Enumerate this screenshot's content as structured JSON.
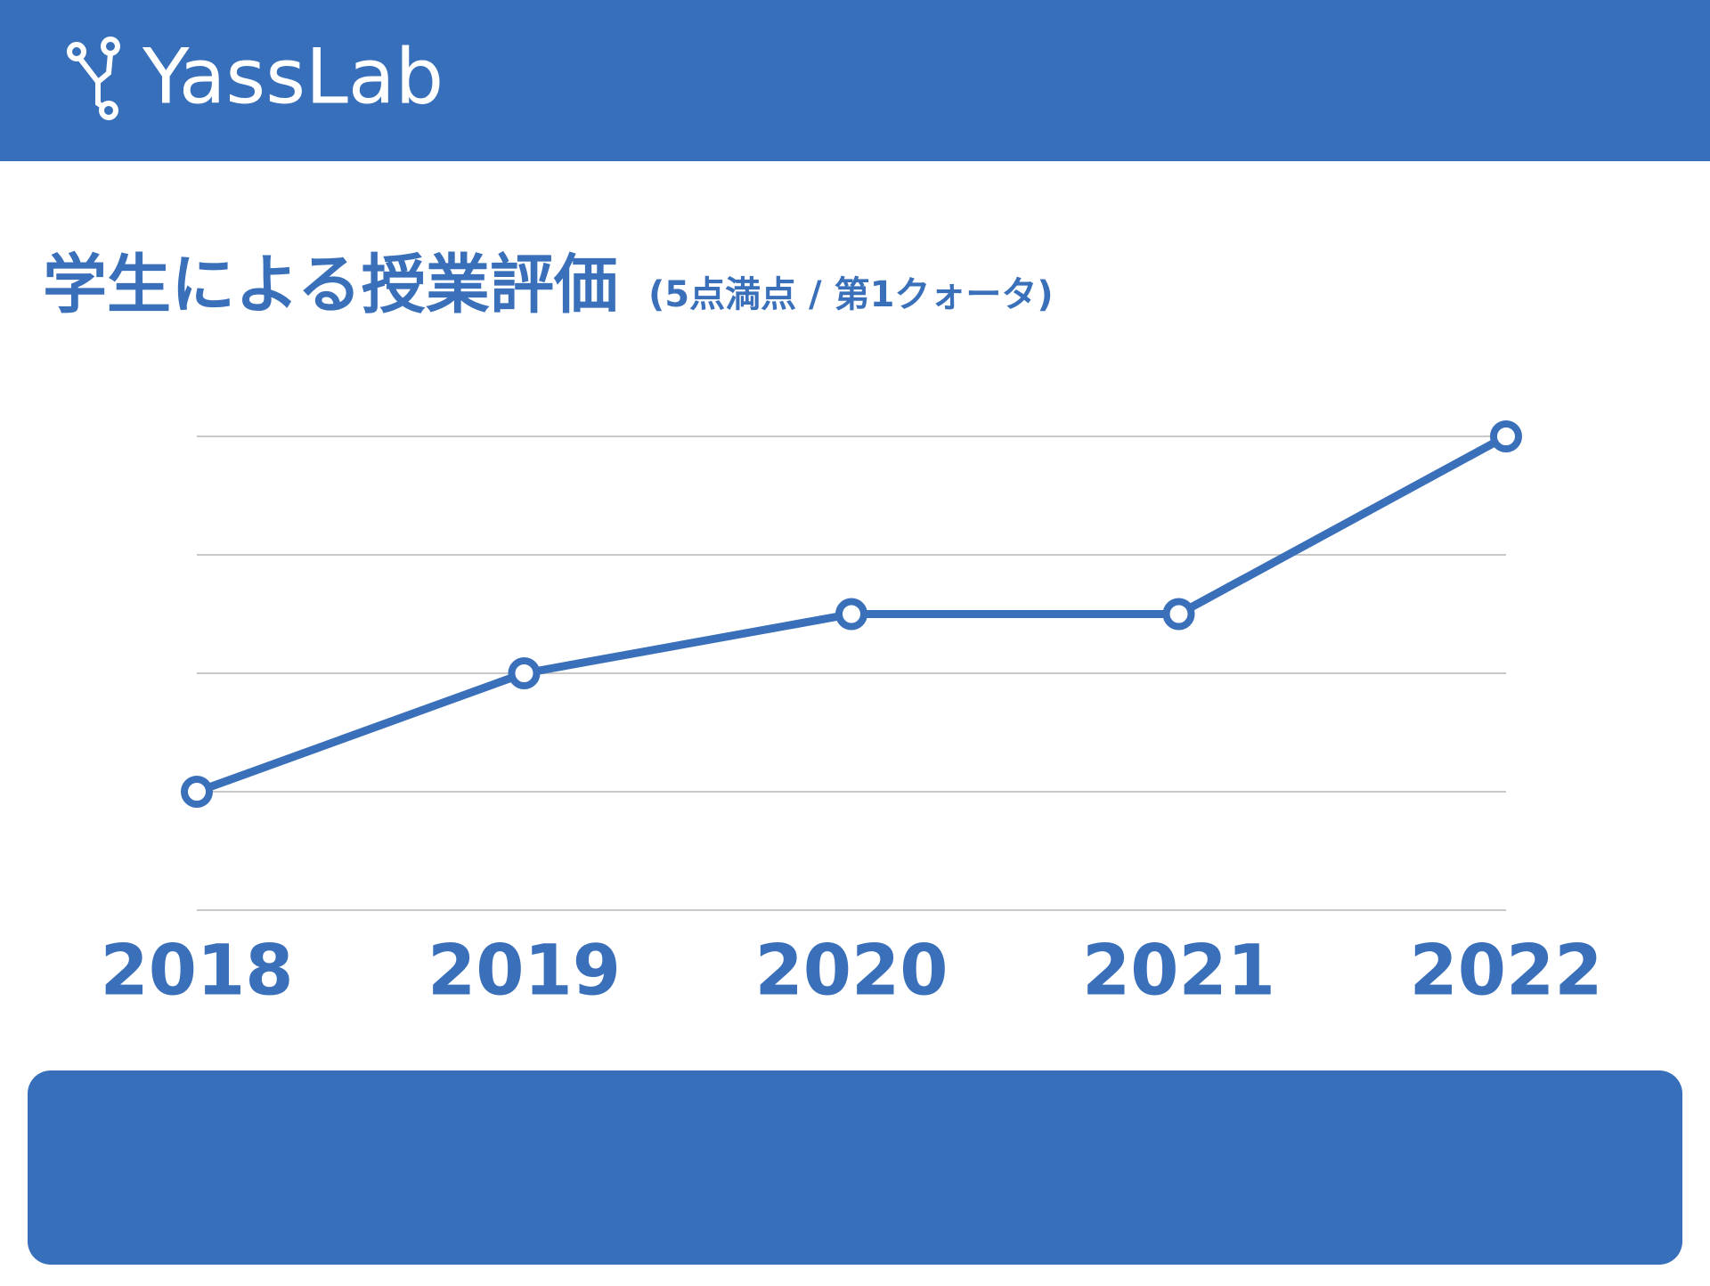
{
  "header": {
    "logo": "YassLab"
  },
  "chart_data": {
    "type": "line",
    "title": "学生による授業評価",
    "subtitle": "(5点満点 / 第1クォータ)",
    "categories": [
      "2018",
      "2019",
      "2020",
      "2021",
      "2022"
    ],
    "values": [
      1,
      2,
      2.5,
      2.5,
      4
    ],
    "color": "#3a6fba",
    "ylim": [
      0,
      4
    ],
    "gridlines": [
      0,
      1,
      2,
      3,
      4
    ],
    "grid": true
  }
}
